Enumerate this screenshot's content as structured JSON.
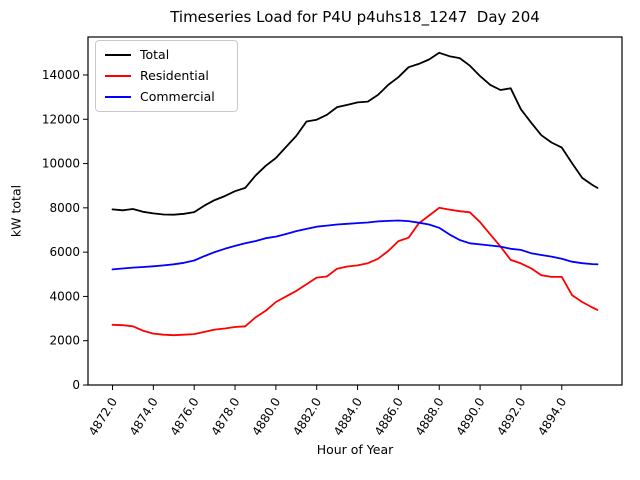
{
  "chart_data": {
    "type": "line",
    "title": "Timeseries Load for P4U p4uhs18_1247  Day 204",
    "xlabel": "Hour of Year",
    "ylabel": "kW total",
    "xlim": [
      4870.8,
      4896.95
    ],
    "ylim": [
      0,
      15715
    ],
    "grid": false,
    "legend_position": "upper left",
    "xticks": [
      4872,
      4874,
      4876,
      4878,
      4880,
      4882,
      4884,
      4886,
      4888,
      4890,
      4892,
      4894
    ],
    "xtick_labels": [
      "4872.0",
      "4874.0",
      "4876.0",
      "4878.0",
      "4880.0",
      "4882.0",
      "4884.0",
      "4886.0",
      "4888.0",
      "4890.0",
      "4892.0",
      "4894.0"
    ],
    "yticks": [
      0,
      2000,
      4000,
      6000,
      8000,
      10000,
      12000,
      14000
    ],
    "ytick_labels": [
      "0",
      "2000",
      "4000",
      "6000",
      "8000",
      "10000",
      "12000",
      "14000"
    ],
    "x": [
      4872.0,
      4872.5,
      4873.0,
      4873.5,
      4874.0,
      4874.5,
      4875.0,
      4875.5,
      4876.0,
      4876.5,
      4877.0,
      4877.5,
      4878.0,
      4878.5,
      4879.0,
      4879.5,
      4880.0,
      4880.5,
      4881.0,
      4881.5,
      4882.0,
      4882.5,
      4883.0,
      4883.5,
      4884.0,
      4884.5,
      4885.0,
      4885.5,
      4886.0,
      4886.5,
      4887.0,
      4887.5,
      4888.0,
      4888.5,
      4889.0,
      4889.5,
      4890.0,
      4890.5,
      4891.0,
      4891.5,
      4892.0,
      4892.5,
      4893.0,
      4893.5,
      4894.0,
      4894.5,
      4895.0,
      4895.5,
      4895.75
    ],
    "series": [
      {
        "name": "Total",
        "color": "#000000",
        "values": [
          7930,
          7890,
          7950,
          7820,
          7750,
          7700,
          7690,
          7730,
          7810,
          8100,
          8350,
          8530,
          8750,
          8900,
          9450,
          9900,
          10250,
          10750,
          11250,
          11900,
          11980,
          12200,
          12550,
          12650,
          12760,
          12800,
          13100,
          13550,
          13900,
          14350,
          14500,
          14700,
          15000,
          14850,
          14760,
          14420,
          13950,
          13550,
          13320,
          13400,
          12450,
          11850,
          11280,
          10950,
          10720,
          10020,
          9350,
          9030,
          8900
        ]
      },
      {
        "name": "Residential",
        "color": "#ff0000",
        "values": [
          2720,
          2700,
          2650,
          2450,
          2320,
          2270,
          2250,
          2270,
          2300,
          2400,
          2500,
          2550,
          2620,
          2650,
          3050,
          3350,
          3750,
          4000,
          4250,
          4550,
          4850,
          4900,
          5250,
          5350,
          5400,
          5500,
          5700,
          6050,
          6500,
          6650,
          7300,
          7650,
          8000,
          7920,
          7850,
          7800,
          7350,
          6800,
          6250,
          5650,
          5490,
          5270,
          4960,
          4880,
          4880,
          4060,
          3750,
          3500,
          3390
        ]
      },
      {
        "name": "Commercial",
        "color": "#0000ff",
        "values": [
          5220,
          5260,
          5300,
          5330,
          5360,
          5400,
          5450,
          5520,
          5620,
          5820,
          6000,
          6150,
          6280,
          6400,
          6500,
          6630,
          6700,
          6820,
          6950,
          7050,
          7150,
          7200,
          7250,
          7280,
          7310,
          7340,
          7390,
          7410,
          7430,
          7400,
          7330,
          7250,
          7100,
          6800,
          6550,
          6400,
          6350,
          6300,
          6250,
          6150,
          6100,
          5950,
          5870,
          5800,
          5700,
          5570,
          5500,
          5460,
          5450
        ]
      }
    ]
  }
}
